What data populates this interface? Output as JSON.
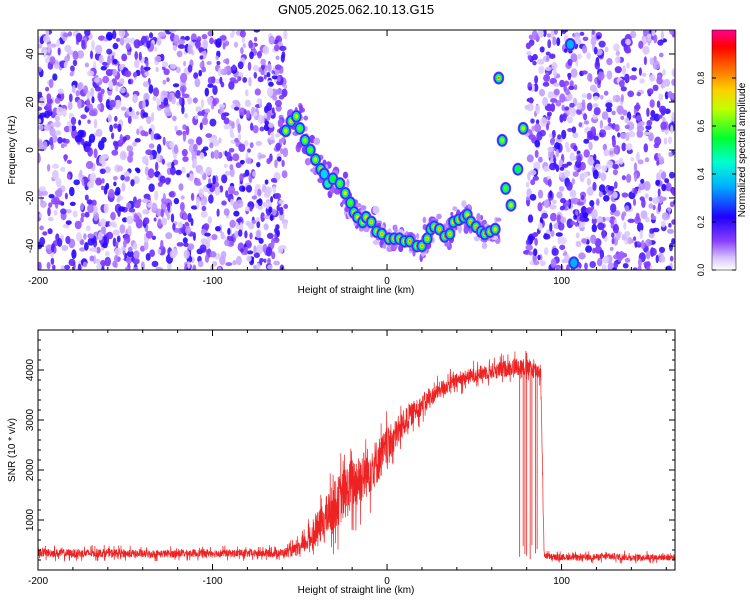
{
  "chart_data": [
    {
      "type": "heatmap",
      "title": "GN05.2025.062.10.13.G15",
      "xlabel": "Height of straight line (km)",
      "ylabel": "Frequency (Hz)",
      "xlim": [
        -200,
        165
      ],
      "ylim": [
        -50,
        50
      ],
      "x_ticks": [
        "-200",
        "-100",
        "0",
        "100"
      ],
      "y_ticks": [
        "40",
        "20",
        "0",
        "-20",
        "-40"
      ],
      "colorbar_label": "Normalized spectral amplitude",
      "colorbar_ticks": [
        "0.0",
        "0.2",
        "0.4",
        "0.6",
        "0.8"
      ],
      "colorbar_colors": [
        "#ffffff",
        "#b48cff",
        "#6a00ff",
        "#0000ff",
        "#00ffff",
        "#00ff00",
        "#ffff00",
        "#ff8000",
        "#ff0000",
        "#ff00a0"
      ],
      "noise_regions": [
        [
          -200,
          -58
        ],
        [
          80,
          165
        ]
      ],
      "signal_track": [
        {
          "x": -58,
          "y": 8,
          "a": 0.7
        },
        {
          "x": -55,
          "y": 12,
          "a": 0.75
        },
        {
          "x": -52,
          "y": 14,
          "a": 0.7
        },
        {
          "x": -50,
          "y": 9,
          "a": 0.6
        },
        {
          "x": -47,
          "y": 4,
          "a": 0.65
        },
        {
          "x": -44,
          "y": 0,
          "a": 0.6
        },
        {
          "x": -41,
          "y": -4,
          "a": 0.65
        },
        {
          "x": -38,
          "y": -8,
          "a": 0.7
        },
        {
          "x": -36,
          "y": -10,
          "a": 0.45
        },
        {
          "x": -34,
          "y": -14,
          "a": 0.5
        },
        {
          "x": -31,
          "y": -12,
          "a": 0.55
        },
        {
          "x": -27,
          "y": -14,
          "a": 0.6
        },
        {
          "x": -24,
          "y": -18,
          "a": 0.7
        },
        {
          "x": -21,
          "y": -22,
          "a": 0.6
        },
        {
          "x": -19,
          "y": -26,
          "a": 0.65
        },
        {
          "x": -17,
          "y": -28,
          "a": 0.7
        },
        {
          "x": -14,
          "y": -30,
          "a": 0.7
        },
        {
          "x": -12,
          "y": -28,
          "a": 0.75
        },
        {
          "x": -9,
          "y": -30,
          "a": 0.8
        },
        {
          "x": -6,
          "y": -34,
          "a": 0.75
        },
        {
          "x": -3,
          "y": -35,
          "a": 0.8
        },
        {
          "x": 1,
          "y": -37,
          "a": 0.85
        },
        {
          "x": 4,
          "y": -37,
          "a": 0.8
        },
        {
          "x": 7,
          "y": -37,
          "a": 0.85
        },
        {
          "x": 10,
          "y": -38,
          "a": 0.8
        },
        {
          "x": 13,
          "y": -38,
          "a": 0.85
        },
        {
          "x": 17,
          "y": -40,
          "a": 0.85
        },
        {
          "x": 20,
          "y": -40,
          "a": 0.8
        },
        {
          "x": 23,
          "y": -37,
          "a": 0.8
        },
        {
          "x": 25,
          "y": -33,
          "a": 0.75
        },
        {
          "x": 27,
          "y": -32,
          "a": 0.75
        },
        {
          "x": 30,
          "y": -33,
          "a": 0.8
        },
        {
          "x": 33,
          "y": -36,
          "a": 0.85
        },
        {
          "x": 36,
          "y": -35,
          "a": 0.8
        },
        {
          "x": 38,
          "y": -30,
          "a": 0.75
        },
        {
          "x": 41,
          "y": -29,
          "a": 0.8
        },
        {
          "x": 44,
          "y": -28,
          "a": 0.8
        },
        {
          "x": 46,
          "y": -27,
          "a": 0.75
        },
        {
          "x": 48,
          "y": -30,
          "a": 0.8
        },
        {
          "x": 51,
          "y": -32,
          "a": 0.8
        },
        {
          "x": 54,
          "y": -34,
          "a": 0.8
        },
        {
          "x": 56,
          "y": -35,
          "a": 0.85
        },
        {
          "x": 59,
          "y": -34,
          "a": 0.8
        },
        {
          "x": 62,
          "y": -33,
          "a": 0.75
        }
      ],
      "isolated_blobs": [
        {
          "x": 64,
          "y": 30,
          "a": 0.85
        },
        {
          "x": 66,
          "y": 4,
          "a": 0.65
        },
        {
          "x": 68,
          "y": -16,
          "a": 0.6
        },
        {
          "x": 71,
          "y": -23,
          "a": 0.7
        },
        {
          "x": 75,
          "y": -8,
          "a": 0.55
        },
        {
          "x": 78,
          "y": 9,
          "a": 0.7
        },
        {
          "x": 105,
          "y": 44,
          "a": 0.35
        },
        {
          "x": 107,
          "y": -47,
          "a": 0.35
        }
      ]
    },
    {
      "type": "line",
      "xlabel": "Height of straight line (km)",
      "ylabel": "SNR (10 * v/v)",
      "xlim": [
        -200,
        165
      ],
      "ylim": [
        0,
        4800
      ],
      "x_ticks": [
        "-200",
        "-100",
        "0",
        "100"
      ],
      "y_ticks": [
        "1000",
        "2000",
        "3000",
        "4000"
      ],
      "line_color": "#ee2222",
      "series": [
        {
          "x": [
            -200,
            -180,
            -160,
            -140,
            -120,
            -100,
            -80,
            -60,
            -50,
            -45,
            -40,
            -35,
            -30,
            -25,
            -20,
            -15,
            -10,
            -5,
            0,
            5,
            10,
            15,
            20,
            25,
            30,
            35,
            40,
            45,
            50,
            55,
            60,
            65,
            70,
            75,
            80,
            85,
            88,
            90,
            95,
            100,
            110,
            120,
            130,
            140,
            150,
            165
          ],
          "y": [
            350,
            330,
            340,
            320,
            330,
            340,
            330,
            340,
            420,
            600,
            800,
            1050,
            1300,
            1500,
            1700,
            1850,
            2000,
            2200,
            2450,
            2700,
            2950,
            3150,
            3300,
            3450,
            3600,
            3700,
            3780,
            3850,
            3900,
            3950,
            3980,
            4000,
            4050,
            4080,
            4050,
            4000,
            3980,
            300,
            250,
            260,
            250,
            260,
            270,
            250,
            260,
            250
          ],
          "noise_amplitude": [
            120,
            120,
            120,
            110,
            110,
            110,
            110,
            120,
            200,
            300,
            450,
            600,
            700,
            750,
            800,
            750,
            700,
            650,
            550,
            450,
            380,
            320,
            280,
            250,
            240,
            230,
            220,
            220,
            220,
            220,
            230,
            240,
            250,
            260,
            260,
            250,
            250,
            100,
            90,
            90,
            90,
            90,
            100,
            90,
            90,
            90
          ]
        }
      ],
      "dropouts_x": [
        76,
        78,
        79,
        80,
        82,
        83,
        85,
        86
      ]
    }
  ]
}
